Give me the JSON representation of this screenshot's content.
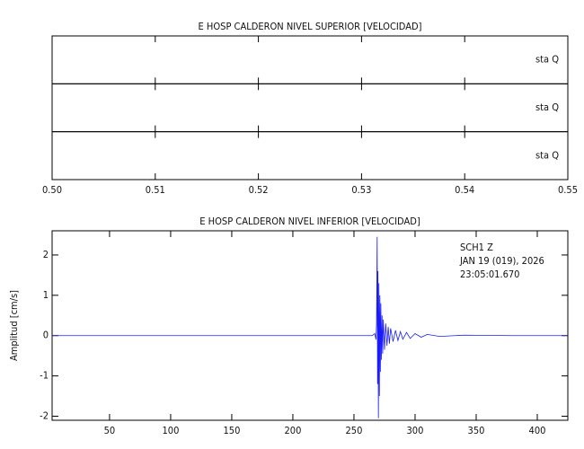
{
  "chart_data": [
    {
      "type": "strip",
      "title": "E HOSP CALDERON NIVEL SUPERIOR [VELOCIDAD]",
      "panels": [
        {
          "label": "sta  Q"
        },
        {
          "label": "sta  Q"
        },
        {
          "label": "sta  Q"
        }
      ],
      "xlim": [
        0.5,
        0.55
      ],
      "xticks": [
        {
          "value": 0.5,
          "label": "0.50"
        },
        0.51,
        0.52,
        0.53,
        0.54,
        0.55
      ]
    },
    {
      "type": "line",
      "title": "E HOSP CALDERON NIVEL INFERIOR [VELOCIDAD]",
      "y_label": "Amplitud  [cm/s]",
      "annotations": [
        "SCH1   Z",
        "JAN 19 (019), 2026",
        "23:05:01.670"
      ],
      "xlim": [
        3,
        425
      ],
      "ylim": [
        -2.1,
        2.6
      ],
      "xticks": [
        50,
        100,
        150,
        200,
        250,
        300,
        350,
        400
      ],
      "yticks": [
        -2,
        -1,
        0,
        1,
        2
      ],
      "series": [
        {
          "color": "#1a1aff",
          "x": [
            3,
            100,
            200,
            265,
            267,
            268,
            268.5,
            269,
            269.3,
            269.6,
            270,
            270.4,
            270.8,
            271.2,
            271.6,
            272,
            272.5,
            273,
            273.5,
            274,
            275,
            276,
            277,
            278,
            279,
            280,
            282,
            284,
            286,
            288,
            290,
            293,
            296,
            300,
            305,
            310,
            320,
            340,
            380,
            425
          ],
          "values": [
            0,
            0,
            0,
            0,
            0.05,
            -0.1,
            0.3,
            2.45,
            -1.2,
            1.6,
            -2.05,
            1.3,
            -1.5,
            1.0,
            -0.9,
            0.8,
            -0.6,
            0.5,
            -0.45,
            0.4,
            -0.35,
            0.3,
            -0.25,
            0.22,
            -0.2,
            0.18,
            -0.15,
            0.13,
            -0.12,
            0.1,
            -0.09,
            0.08,
            -0.07,
            0.05,
            -0.04,
            0.03,
            -0.02,
            0.01,
            0,
            0
          ]
        }
      ]
    }
  ]
}
